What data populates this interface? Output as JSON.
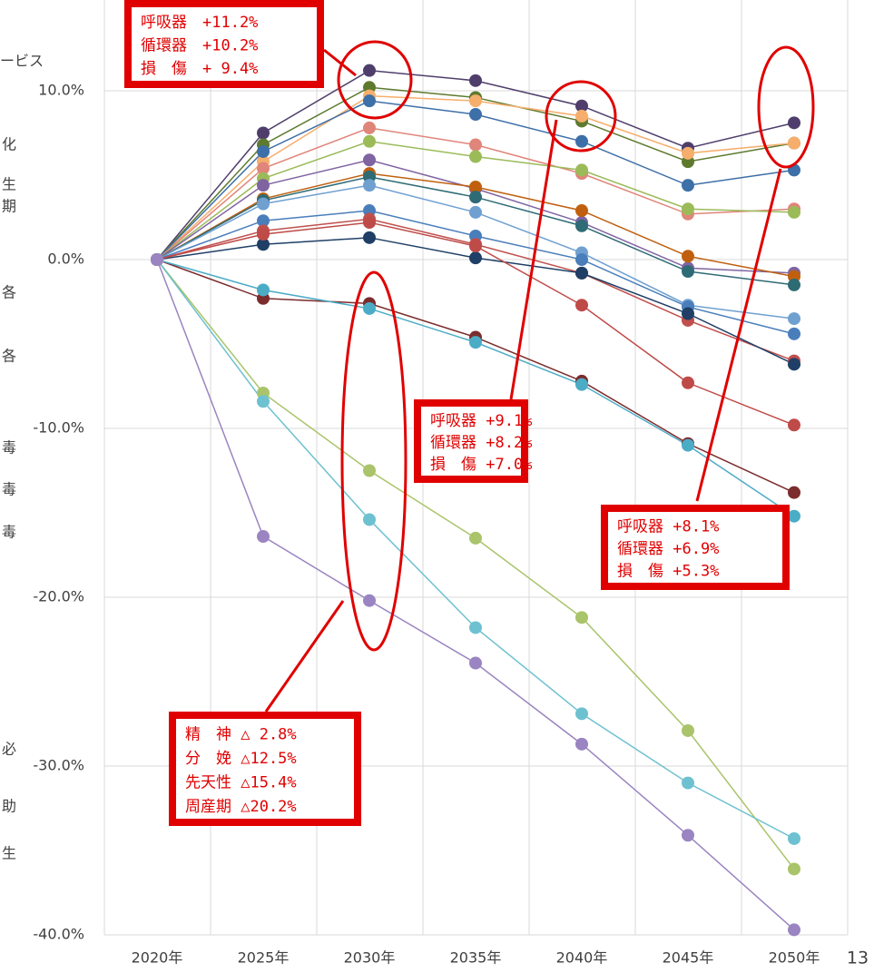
{
  "chart_data": {
    "type": "line",
    "categories": [
      "2020年",
      "2025年",
      "2030年",
      "2035年",
      "2040年",
      "2045年",
      "2050年"
    ],
    "ylim": [
      -40,
      15
    ],
    "yticks": [
      {
        "value": -40,
        "label": "-40.0%"
      },
      {
        "value": -30,
        "label": "-30.0%"
      },
      {
        "value": -20,
        "label": "-20.0%"
      },
      {
        "value": -10,
        "label": "-10.0%"
      },
      {
        "value": 0,
        "label": "0.0%"
      },
      {
        "value": 10,
        "label": "10.0%"
      }
    ],
    "grid": true,
    "series": [
      {
        "color": "#4f3e6b",
        "values": [
          0,
          7.5,
          11.2,
          10.6,
          9.1,
          6.6,
          8.1
        ]
      },
      {
        "color": "#5d7a2e",
        "values": [
          0,
          6.8,
          10.2,
          9.6,
          8.2,
          5.8,
          6.9
        ]
      },
      {
        "color": "#f6ae6c",
        "values": [
          0,
          5.8,
          9.7,
          9.4,
          8.5,
          6.3,
          6.9
        ]
      },
      {
        "color": "#3d6fa8",
        "values": [
          0,
          6.4,
          9.4,
          8.6,
          7.0,
          4.4,
          5.3
        ]
      },
      {
        "color": "#e0857a",
        "values": [
          0,
          5.4,
          7.8,
          6.8,
          5.1,
          2.7,
          3.0
        ]
      },
      {
        "color": "#9bbb59",
        "values": [
          0,
          4.8,
          7.0,
          6.1,
          5.3,
          3.0,
          2.8
        ]
      },
      {
        "color": "#8064a2",
        "values": [
          0,
          4.4,
          5.9,
          4.2,
          2.2,
          -0.5,
          -0.8
        ]
      },
      {
        "color": "#c0600e",
        "values": [
          0,
          3.6,
          5.1,
          4.3,
          2.9,
          0.2,
          -1.0
        ]
      },
      {
        "color": "#2e6b75",
        "values": [
          0,
          3.5,
          4.9,
          3.7,
          2.0,
          -0.7,
          -1.5
        ]
      },
      {
        "color": "#6fa0d0",
        "values": [
          0,
          3.3,
          4.4,
          2.8,
          0.4,
          -2.7,
          -3.5
        ]
      },
      {
        "color": "#4a7ebb",
        "values": [
          0,
          2.3,
          2.9,
          1.4,
          0.0,
          -2.8,
          -4.4
        ]
      },
      {
        "color": "#c0504d",
        "values": [
          0,
          1.7,
          2.4,
          0.9,
          -0.8,
          -3.6,
          -6.0
        ]
      },
      {
        "color": "#1f3f66",
        "values": [
          0,
          0.9,
          1.3,
          0.1,
          -0.8,
          -3.2,
          -6.2
        ]
      },
      {
        "color": "#be4b48",
        "values": [
          0,
          1.5,
          2.2,
          0.8,
          -2.7,
          -7.3,
          -9.8
        ]
      },
      {
        "color": "#7b2c2c",
        "values": [
          0,
          -2.3,
          -2.6,
          -4.6,
          -7.2,
          -10.9,
          -13.8
        ]
      },
      {
        "color": "#4bacc6",
        "values": [
          0,
          -1.8,
          -2.9,
          -4.9,
          -7.4,
          -11.0,
          -15.2
        ]
      },
      {
        "color": "#a9c46a",
        "values": [
          0,
          -7.9,
          -12.5,
          -16.5,
          -21.2,
          -27.9,
          -36.1
        ]
      },
      {
        "color": "#6ec1d0",
        "values": [
          0,
          -8.4,
          -15.4,
          -21.8,
          -26.9,
          -31.0,
          -34.3
        ]
      },
      {
        "color": "#9a84c1",
        "values": [
          0,
          -16.4,
          -20.2,
          -23.9,
          -28.7,
          -34.1,
          -39.7
        ]
      }
    ],
    "annotations": [
      {
        "lines": [
          "呼吸器　+11.2%",
          "循環器　+10.2%",
          "損　傷　+ 9.4%"
        ]
      },
      {
        "lines": [
          "呼吸器 +9.1%",
          "循環器 +8.2%",
          "損　傷 +7.0%"
        ]
      },
      {
        "lines": [
          "呼吸器 +8.1%",
          "循環器 +6.9%",
          "損　傷 +5.3%"
        ]
      },
      {
        "lines": [
          "精　神 △ 2.8%",
          "分　娩 △12.5%",
          "先天性 △15.4%",
          "周産期 △20.2%"
        ]
      }
    ]
  },
  "left_text": [
    "ービス",
    "化",
    "生",
    "期",
    "各",
    "各",
    "毒",
    "毒",
    "毒",
    "必",
    "助",
    "生"
  ],
  "page_number": "13"
}
